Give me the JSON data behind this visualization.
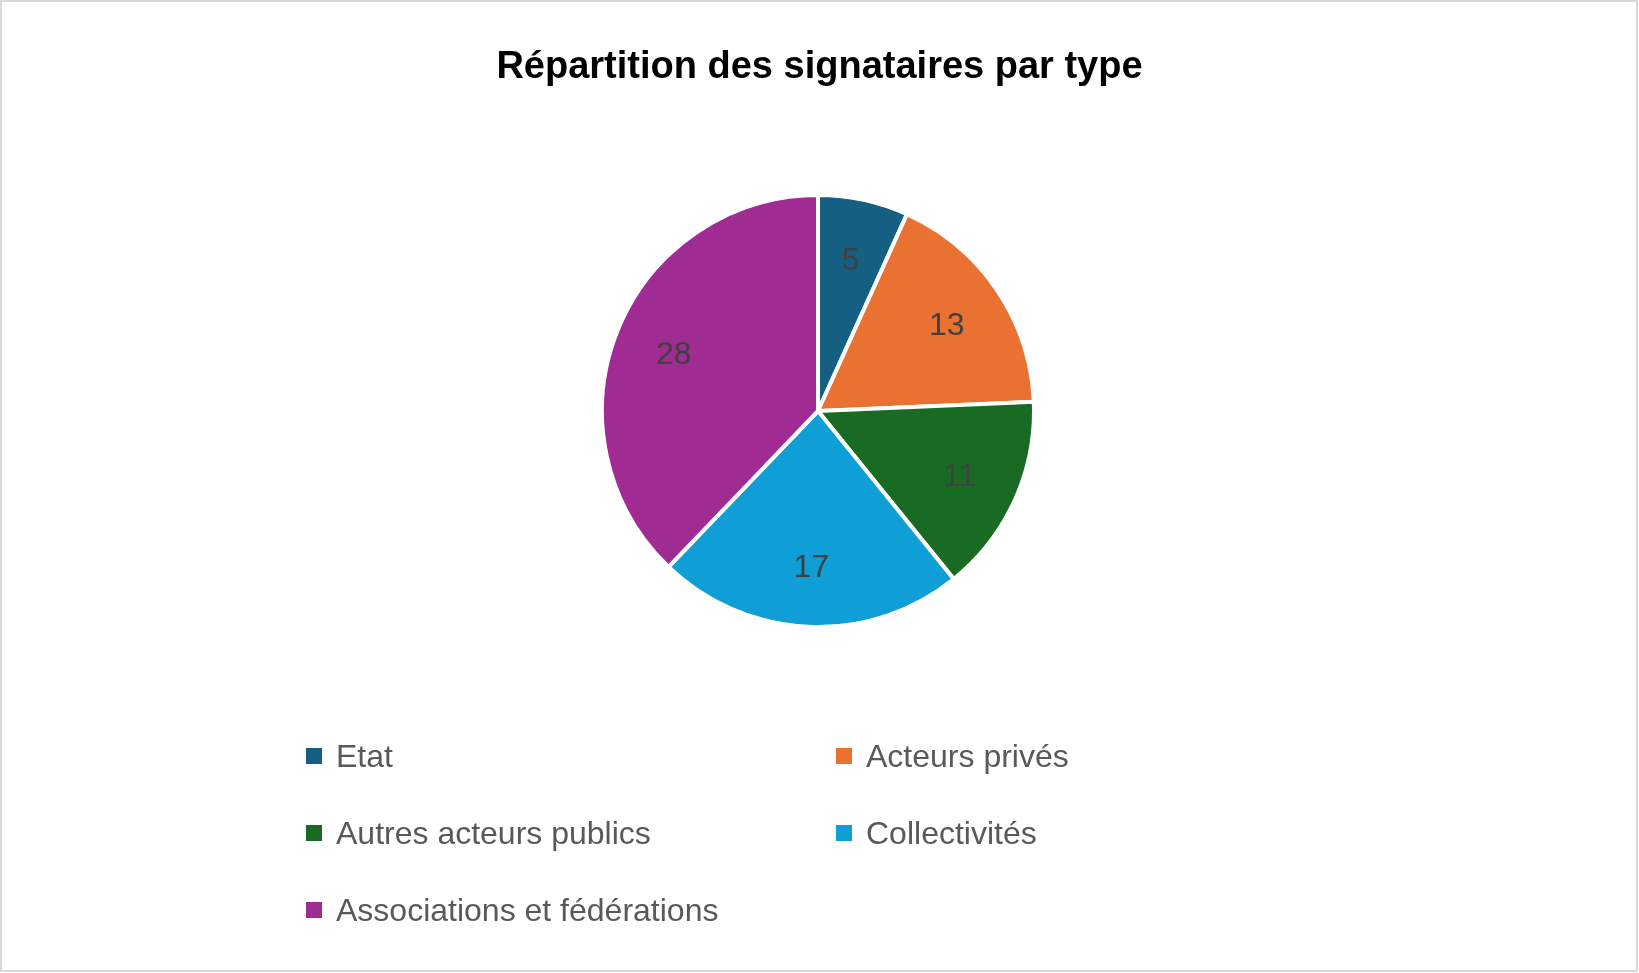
{
  "chart_data": {
    "type": "pie",
    "title": "Répartition des signataires par type",
    "categories": [
      "Etat",
      "Acteurs privés",
      "Autres acteurs publics",
      "Collectivités",
      "Associations et fédérations"
    ],
    "values": [
      5,
      13,
      11,
      17,
      28
    ],
    "colors": [
      "#156082",
      "#e97132",
      "#196b24",
      "#0f9ed5",
      "#a02b93"
    ],
    "data_labels": true,
    "legend": "bottom"
  }
}
